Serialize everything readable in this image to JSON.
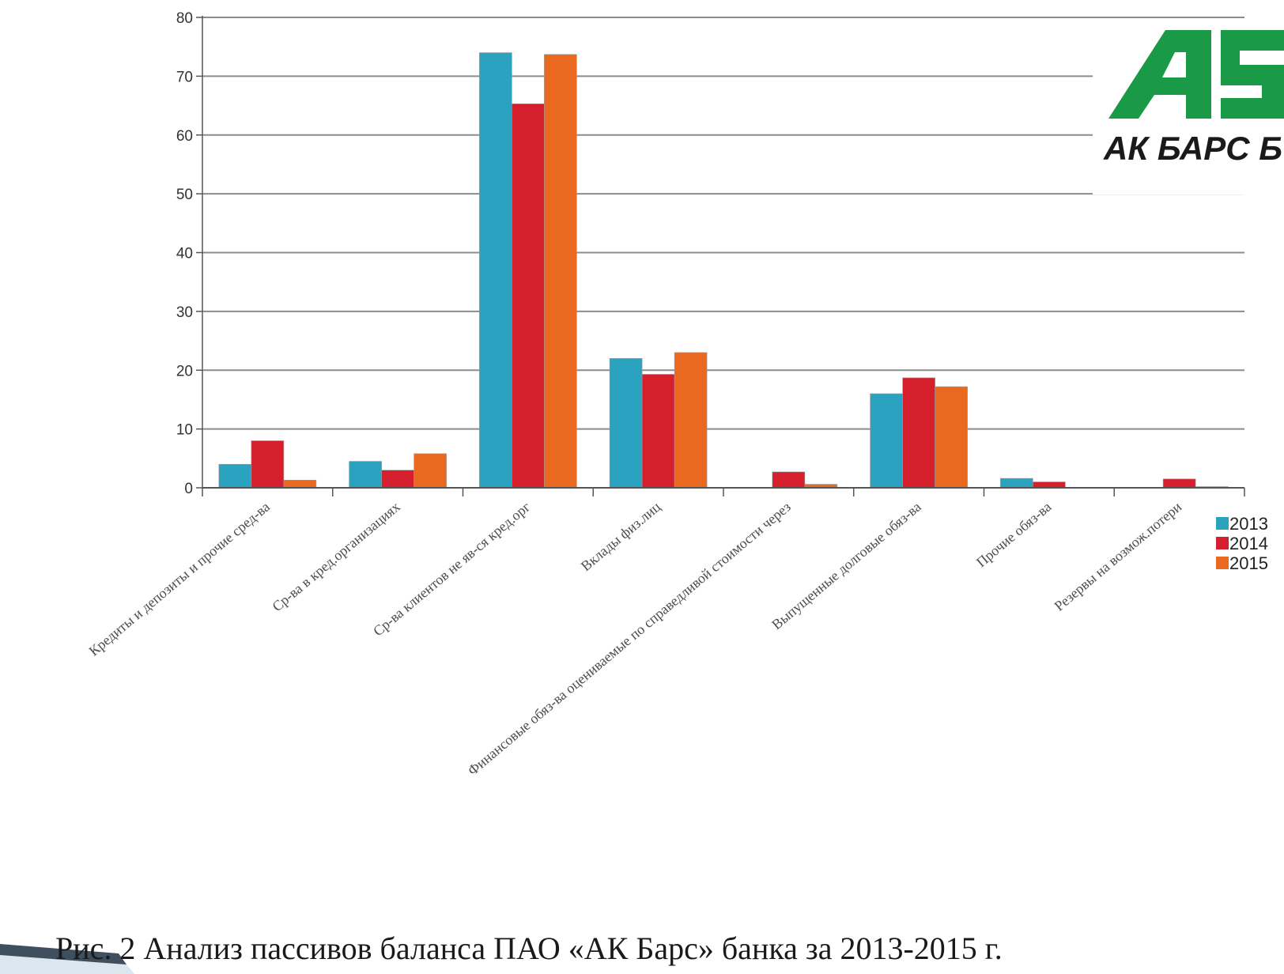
{
  "chart_data": {
    "type": "bar",
    "categories": [
      "Кредиты и депозиты и прочие сред-ва",
      "Ср-ва в кред.организациях",
      "Ср-ва клиентов не яв-ся кред.орг",
      "Вклады физ.лиц",
      "Финансовые обяз-ва оцениваемые по справедливой стоимости через",
      "Выпущенные долговые обяз-ва",
      "Прочие обяз-ва",
      "Резервы на возмож.потери"
    ],
    "series": [
      {
        "name": "2013",
        "color": "#2aa2c0",
        "values": [
          4,
          4.5,
          74,
          22,
          0,
          16,
          1.6,
          0
        ]
      },
      {
        "name": "2014",
        "color": "#d61f2c",
        "values": [
          8,
          3,
          65.3,
          19.3,
          2.7,
          18.7,
          1,
          1.5
        ]
      },
      {
        "name": "2015",
        "color": "#e8691f",
        "values": [
          1.3,
          5.8,
          73.7,
          23,
          0.6,
          17.2,
          0,
          0.2
        ]
      }
    ],
    "ylim": [
      0,
      80
    ],
    "yticks": [
      0,
      10,
      20,
      30,
      40,
      50,
      60,
      70,
      80
    ],
    "grid": true,
    "legend": "right"
  },
  "logo": {
    "text": "АК БАРС Б",
    "color": "#1a9a46"
  },
  "caption": "Рис. 2 Анализ пассивов баланса ПАО «АК Барс» банка за 2013-2015 г."
}
